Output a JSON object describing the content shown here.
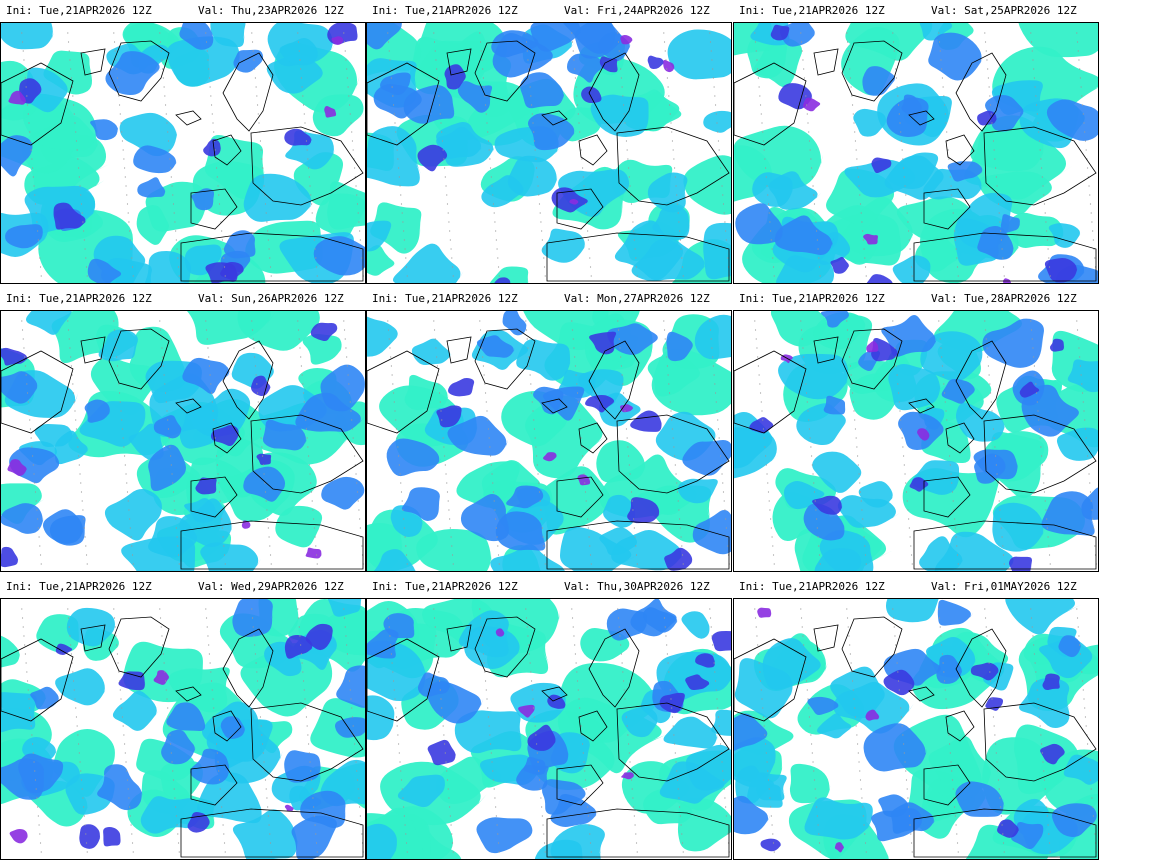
{
  "panels": [
    {
      "ini": "Ini: Tue,21APR2026 12Z",
      "val": "Val: Thu,23APR2026 12Z"
    },
    {
      "ini": "Ini: Tue,21APR2026 12Z",
      "val": "Val: Fri,24APR2026 12Z"
    },
    {
      "ini": "Ini: Tue,21APR2026 12Z",
      "val": "Val: Sat,25APR2026 12Z"
    },
    {
      "ini": "Ini: Tue,21APR2026 12Z",
      "val": "Val: Sun,26APR2026 12Z"
    },
    {
      "ini": "Ini: Tue,21APR2026 12Z",
      "val": "Val: Mon,27APR2026 12Z"
    },
    {
      "ini": "Ini: Tue,21APR2026 12Z",
      "val": "Val: Tue,28APR2026 12Z"
    },
    {
      "ini": "Ini: Tue,21APR2026 12Z",
      "val": "Val: Wed,29APR2026 12Z"
    },
    {
      "ini": "Ini: Tue,21APR2026 12Z",
      "val": "Val: Thu,30APR2026 12Z"
    },
    {
      "ini": "Ini: Tue,21APR2026 12Z",
      "val": "Val: Fri,01MAY2026 12Z"
    }
  ],
  "colors": {
    "shade_light": "#33f0c8",
    "shade_mid": "#22c8ee",
    "shade_blue": "#2f86f5",
    "shade_deep": "#3a3ae0",
    "shade_purple": "#8a2ce0",
    "coastline": "#000000",
    "grid_dots": "#9a9a9a"
  }
}
